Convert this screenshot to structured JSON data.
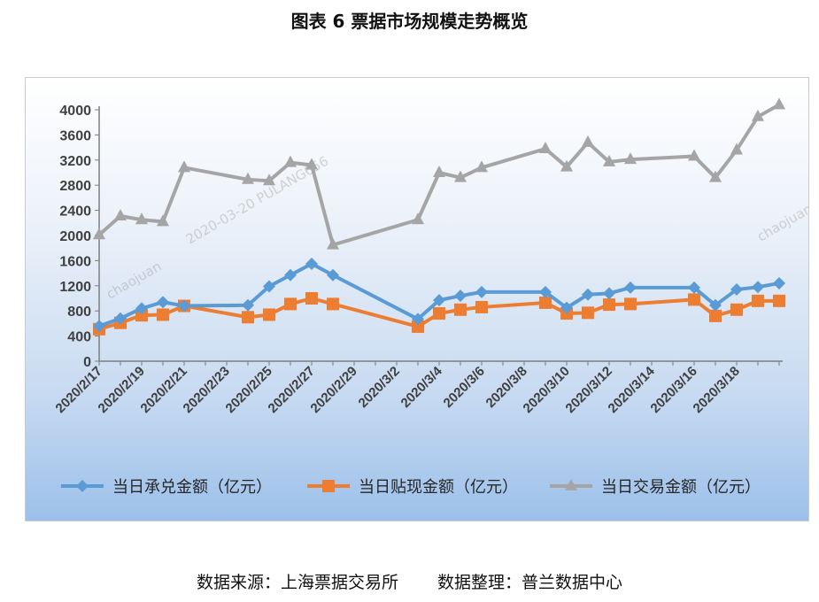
{
  "title": "图表 6  票据市场规模走势概览",
  "footer": {
    "source": "数据来源：上海票据交易所",
    "compiled": "数据整理：普兰数据中心"
  },
  "watermark": {
    "text1": "chaojuan",
    "text2": "2020-03-20  PULANG656"
  },
  "chart_data": {
    "type": "line",
    "ylim": [
      0,
      4000
    ],
    "yticks": [
      "0",
      "400",
      "800",
      "1200",
      "1600",
      "2000",
      "2400",
      "2800",
      "3200",
      "3600",
      "4000"
    ],
    "xtick_labels": [
      "2020/2/17",
      "2020/2/19",
      "2020/2/21",
      "2020/2/23",
      "2020/2/25",
      "2020/2/27",
      "2020/2/29",
      "2020/3/2",
      "2020/3/4",
      "2020/3/6",
      "2020/3/8",
      "2020/3/10",
      "2020/3/12",
      "2020/3/14",
      "2020/3/16",
      "2020/3/18"
    ],
    "x": [
      "2020/2/17",
      "2020/2/18",
      "2020/2/19",
      "2020/2/20",
      "2020/2/21",
      "2020/2/24",
      "2020/2/25",
      "2020/2/26",
      "2020/2/27",
      "2020/2/28",
      "2020/3/2",
      "2020/3/3",
      "2020/3/4",
      "2020/3/5",
      "2020/3/6",
      "2020/3/9",
      "2020/3/10",
      "2020/3/11",
      "2020/3/12",
      "2020/3/13",
      "2020/3/16",
      "2020/3/17",
      "2020/3/18",
      "2020/3/19",
      "2020/3/20"
    ],
    "series": [
      {
        "name": "当日承兑金额（亿元）",
        "color": "#5b9bd5",
        "marker": "diamond",
        "values": [
          560,
          680,
          840,
          940,
          880,
          890,
          1190,
          1370,
          1550,
          1370,
          null,
          670,
          970,
          1040,
          1100,
          1100,
          850,
          1060,
          1080,
          1170,
          1170,
          890,
          1140,
          1180,
          1240
        ]
      },
      {
        "name": "当日贴现金额（亿元）",
        "color": "#ed7d31",
        "marker": "square",
        "values": [
          510,
          610,
          730,
          740,
          880,
          700,
          740,
          910,
          1000,
          910,
          null,
          550,
          760,
          820,
          860,
          930,
          760,
          770,
          900,
          910,
          980,
          720,
          820,
          960,
          960
        ]
      },
      {
        "name": "当日交易金额（亿元）",
        "color": "#a5a5a5",
        "marker": "triangle",
        "values": [
          2010,
          2310,
          2250,
          2220,
          3080,
          2890,
          2870,
          3160,
          3120,
          1850,
          null,
          2250,
          3000,
          2920,
          3080,
          3380,
          3090,
          3480,
          3170,
          3210,
          3260,
          2920,
          3360,
          3890,
          4080
        ]
      }
    ],
    "legend_position": "bottom",
    "grid": false
  }
}
